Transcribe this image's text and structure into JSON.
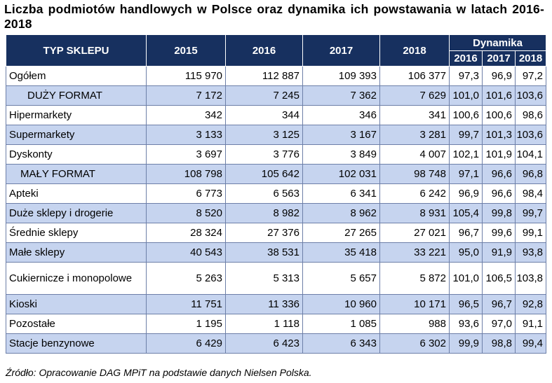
{
  "title": "Liczba podmiotów handlowych w Polsce oraz dynamika ich powstawania w latach 2016-2018",
  "header": {
    "type": "TYP SKLEPU",
    "years": [
      "2015",
      "2016",
      "2017",
      "2018"
    ],
    "dynamics": "Dynamika",
    "dynamics_years": [
      "2016",
      "2017",
      "2018"
    ]
  },
  "rows": [
    {
      "name": "Ogółem",
      "values": [
        "115 970",
        "112 887",
        "109 393",
        "106 377"
      ],
      "dyn": [
        "97,3",
        "96,9",
        "97,2"
      ]
    },
    {
      "name": "DUŻY FORMAT",
      "values": [
        "7 172",
        "7 245",
        "7 362",
        "7 629"
      ],
      "dyn": [
        "101,0",
        "101,6",
        "103,6"
      ]
    },
    {
      "name": "Hipermarkety",
      "values": [
        "342",
        "344",
        "346",
        "341"
      ],
      "dyn": [
        "100,6",
        "100,6",
        "98,6"
      ]
    },
    {
      "name": "Supermarkety",
      "values": [
        "3 133",
        "3 125",
        "3 167",
        "3 281"
      ],
      "dyn": [
        "99,7",
        "101,3",
        "103,6"
      ]
    },
    {
      "name": "Dyskonty",
      "values": [
        "3 697",
        "3 776",
        "3 849",
        "4 007"
      ],
      "dyn": [
        "102,1",
        "101,9",
        "104,1"
      ]
    },
    {
      "name": "MAŁY FORMAT",
      "values": [
        "108 798",
        "105 642",
        "102 031",
        "98 748"
      ],
      "dyn": [
        "97,1",
        "96,6",
        "96,8"
      ]
    },
    {
      "name": "Apteki",
      "values": [
        "6 773",
        "6 563",
        "6 341",
        "6 242"
      ],
      "dyn": [
        "96,9",
        "96,6",
        "98,4"
      ]
    },
    {
      "name": "Duże sklepy i drogerie",
      "values": [
        "8 520",
        "8 982",
        "8 962",
        "8 931"
      ],
      "dyn": [
        "105,4",
        "99,8",
        "99,7"
      ]
    },
    {
      "name": "Średnie sklepy",
      "values": [
        "28 324",
        "27 376",
        "27 265",
        "27 021"
      ],
      "dyn": [
        "96,7",
        "99,6",
        "99,1"
      ]
    },
    {
      "name": "Małe sklepy",
      "values": [
        "40 543",
        "38 531",
        "35 418",
        "33 221"
      ],
      "dyn": [
        "95,0",
        "91,9",
        "93,8"
      ]
    },
    {
      "name": "Cukiernicze i monopolowe",
      "values": [
        "5 263",
        "5 313",
        "5 657",
        "5 872"
      ],
      "dyn": [
        "101,0",
        "106,5",
        "103,8"
      ]
    },
    {
      "name": "Kioski",
      "values": [
        "11 751",
        "11 336",
        "10 960",
        "10 171"
      ],
      "dyn": [
        "96,5",
        "96,7",
        "92,8"
      ]
    },
    {
      "name": "Pozostałe",
      "values": [
        "1 195",
        "1 118",
        "1 085",
        "988"
      ],
      "dyn": [
        "93,6",
        "97,0",
        "91,1"
      ]
    },
    {
      "name": "Stacje benzynowe",
      "values": [
        "6 429",
        "6 423",
        "6 343",
        "6 302"
      ],
      "dyn": [
        "99,9",
        "98,8",
        "99,4"
      ]
    }
  ],
  "source": "Źródło: Opracowanie DAG MPiT na podstawie danych Nielsen Polska.",
  "colors": {
    "header": "#17305f",
    "row_blue": "#c6d4ef",
    "row_white": "#ffffff"
  }
}
